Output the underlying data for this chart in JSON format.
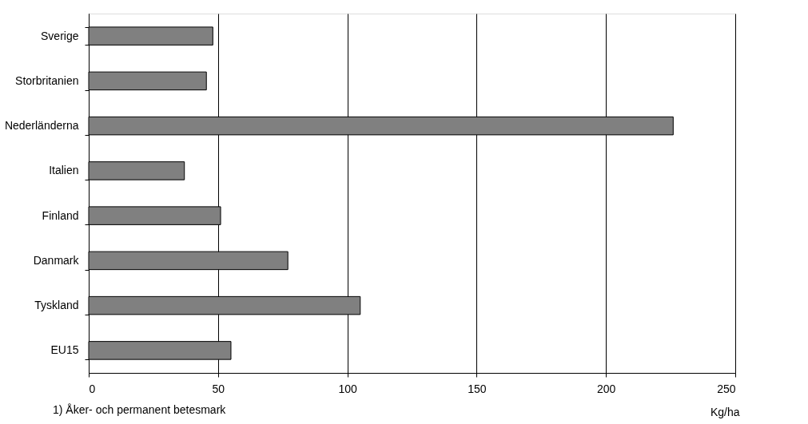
{
  "chart_data": {
    "type": "bar",
    "orientation": "horizontal",
    "categories": [
      "Sverige",
      "Storbritanien",
      "Nederländerna",
      "Italien",
      "Finland",
      "Danmark",
      "Tyskland",
      "EU15"
    ],
    "values": [
      48,
      45.5,
      226,
      37,
      51,
      77,
      105,
      55
    ],
    "color": "#808080",
    "xlim": [
      0,
      250
    ],
    "xticks": [
      0,
      50,
      100,
      150,
      200,
      250
    ],
    "xlabel": "Kg/ha",
    "grid": "x",
    "annotations": [
      "1) Åker- och permanent betesmark"
    ]
  }
}
